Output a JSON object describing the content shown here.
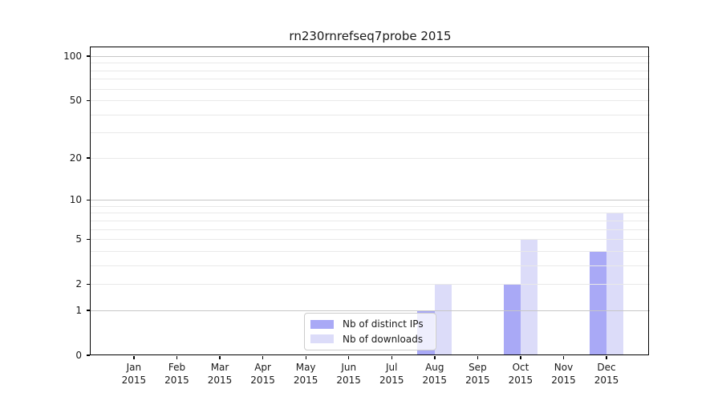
{
  "chart_data": {
    "type": "bar",
    "title": "rn230rnrefseq7probe 2015",
    "x_axis": {
      "months": [
        "Jan",
        "Feb",
        "Mar",
        "Apr",
        "May",
        "Jun",
        "Jul",
        "Aug",
        "Sep",
        "Oct",
        "Nov",
        "Dec"
      ],
      "year_line": "2015"
    },
    "y_axis": {
      "scale": "log1p",
      "ticks": [
        0,
        1,
        2,
        5,
        10,
        20,
        50,
        100
      ],
      "tick_labels": [
        "0",
        "1",
        "2",
        "5",
        "10",
        "20",
        "50",
        "100"
      ],
      "major_gridlines": [
        1,
        10,
        100
      ],
      "minor_gridlines": [
        2,
        3,
        4,
        5,
        6,
        7,
        8,
        9,
        20,
        30,
        40,
        50,
        60,
        70,
        80,
        90
      ],
      "ylim": [
        0,
        114
      ]
    },
    "series": [
      {
        "name": "Nb of distinct IPs",
        "color": "#a9a9f6",
        "values": [
          0,
          0,
          0,
          0,
          0,
          0,
          0,
          1,
          0,
          2,
          0,
          4
        ]
      },
      {
        "name": "Nb of downloads",
        "color": "#dcdcf9",
        "values": [
          0,
          0,
          0,
          0,
          0,
          0,
          0,
          2,
          0,
          5,
          0,
          8
        ]
      }
    ],
    "legend": {
      "position": "lower center"
    },
    "grid": "on",
    "colors": {
      "major_grid": "#c6c6c6",
      "minor_grid": "#e9e9e9",
      "spine": "#000000",
      "background": "#ffffff",
      "text": "#1a1a1a",
      "legend_border": "#cccccc"
    }
  }
}
